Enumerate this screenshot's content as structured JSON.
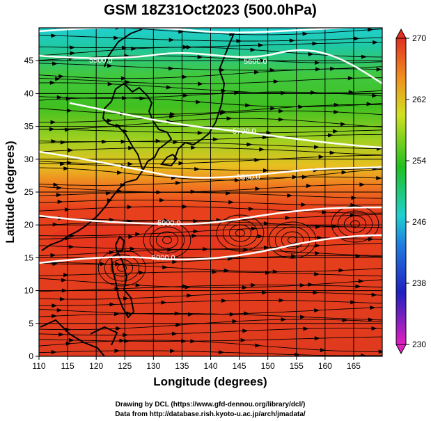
{
  "title": "GSM 18Z31Oct2023 (500.0hPa)",
  "xlabel": "Longitude (degrees)",
  "ylabel": "Latitude  (degrees)",
  "x_ticks": [
    "110",
    "115",
    "120",
    "125",
    "130",
    "135",
    "140",
    "145",
    "150",
    "155",
    "160",
    "165"
  ],
  "y_ticks": [
    "0",
    "5",
    "10",
    "15",
    "20",
    "25",
    "30",
    "35",
    "40",
    "45"
  ],
  "colorbar": {
    "ticks": [
      "230",
      "238",
      "246",
      "254",
      "262",
      "270"
    ],
    "colors": [
      "#e020c0",
      "#2020c0",
      "#20c0e0",
      "#20c020",
      "#d0e020",
      "#f09020",
      "#e03020"
    ]
  },
  "contour_labels": [
    "5500.0",
    "5600.0",
    "5700.0",
    "5800.0",
    "5900.0",
    "5900.0"
  ],
  "credits": {
    "line1": "Drawing by DCL (https://www.gfd-dennou.org/library/dcl/)",
    "line2": "Data from http://database.rish.kyoto-u.ac.jp/arch/jmadata/"
  },
  "chart_data": {
    "type": "heatmap",
    "variable": "temperature shading with geopotential height contours and wind streamlines",
    "xlim": [
      110,
      170
    ],
    "ylim": [
      0,
      50
    ],
    "zlim": [
      230,
      270
    ],
    "contour_levels": [
      5500,
      5600,
      5700,
      5800,
      5900
    ]
  }
}
